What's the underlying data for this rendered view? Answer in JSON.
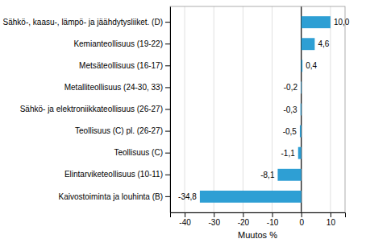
{
  "chart_data": {
    "type": "bar",
    "orientation": "horizontal",
    "categories": [
      "Kaivostoiminta  ja louhinta (B)",
      "Elintarviketeollisuus (10-11)",
      "Teollisuus (C)",
      "Teollisuus (C) pl. (26-27)",
      "Sähkö- ja elektroniikkateollisuus (26-27)",
      "Metalliteollisuus (24-30, 33)",
      "Metsäteollisuus (16-17)",
      "Kemianteollisuus (19-22)",
      "Sähkö-, kaasu-, lämpö- ja jäähdytysliiket. (D)"
    ],
    "values": [
      -34.8,
      -8.1,
      -1.1,
      -0.5,
      -0.3,
      -0.2,
      0.4,
      4.6,
      10.0
    ],
    "value_labels": [
      "-34,8",
      "-8,1",
      "-1,1",
      "-0,5",
      "-0,3",
      "-0,2",
      "0,4",
      "4,6",
      "10,0"
    ],
    "data_labels": true,
    "color": "#2e9fd4",
    "xlabel": "Muutos %",
    "xlim": [
      -45,
      15
    ],
    "xticks": [
      -40,
      -30,
      -20,
      -10,
      0,
      10
    ],
    "grid": true
  }
}
